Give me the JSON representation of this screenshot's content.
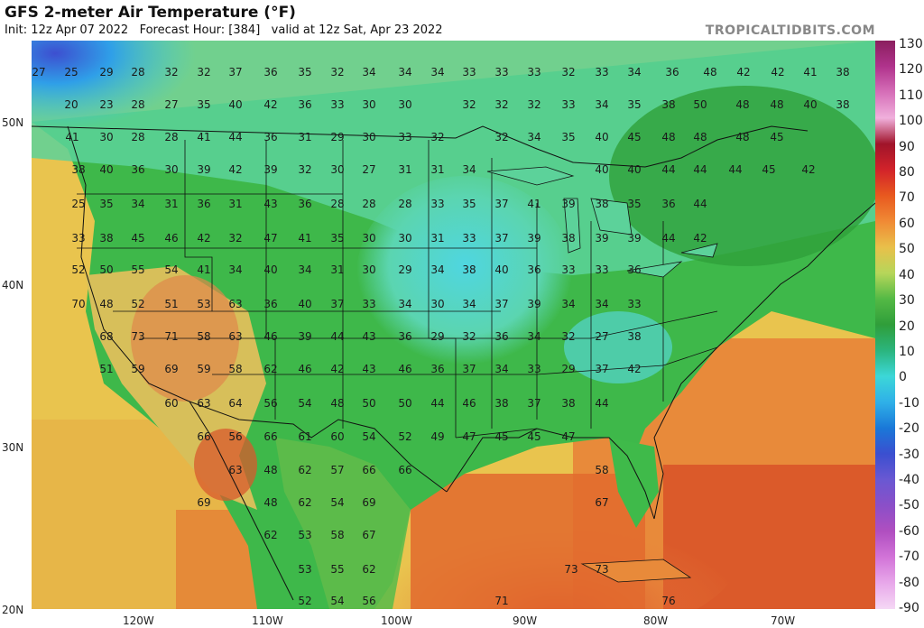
{
  "header": {
    "title": "GFS 2-meter Air Temperature (°F)",
    "subtitle": "Init: 12z Apr 07 2022   Forecast Hour: [384]   valid at 12z Sat, Apr 23 2022",
    "credit": "TROPICALTIDBITS.COM"
  },
  "colorbar": {
    "labels": [
      "130",
      "120",
      "110",
      "100",
      "90",
      "80",
      "70",
      "60",
      "50",
      "40",
      "30",
      "20",
      "10",
      "0",
      "-10",
      "-20",
      "-30",
      "-40",
      "-50",
      "-60",
      "-70",
      "-80",
      "-90"
    ],
    "colors": [
      "#8a1f5e",
      "#b0338c",
      "#d66fb8",
      "#f0b0dc",
      "#a0142a",
      "#d2232a",
      "#e8591f",
      "#f08a35",
      "#e9c04a",
      "#b6d65a",
      "#54b945",
      "#2f9e3a",
      "#2bb57e",
      "#3cd7d8",
      "#2fb0e8",
      "#1a78d8",
      "#3b4fd0",
      "#6a58d2",
      "#8b4fc8",
      "#b04fc0",
      "#d274d8",
      "#e8a8ea",
      "#f5d8f5"
    ]
  },
  "axes": {
    "lat_labels": [
      "50N",
      "40N",
      "30N",
      "20N"
    ],
    "lon_labels": [
      "120W",
      "110W",
      "100W",
      "90W",
      "80W",
      "70W"
    ]
  },
  "temps": [
    "27",
    "25",
    "29",
    "28",
    "32",
    "32",
    "37",
    "36",
    "35",
    "32",
    "34",
    "34",
    "34",
    "33",
    "33",
    "33",
    "32",
    "33",
    "34",
    "36",
    "48",
    "42",
    "42",
    "41",
    "38",
    "20",
    "23",
    "28",
    "27",
    "35",
    "40",
    "42",
    "36",
    "33",
    "30",
    "30",
    "32",
    "32",
    "32",
    "33",
    "34",
    "35",
    "38",
    "50",
    "48",
    "48",
    "40",
    "38",
    "41",
    "30",
    "28",
    "28",
    "41",
    "44",
    "36",
    "31",
    "29",
    "30",
    "33",
    "32",
    "32",
    "34",
    "35",
    "40",
    "45",
    "48",
    "48",
    "48",
    "45",
    "38",
    "40",
    "36",
    "30",
    "39",
    "42",
    "39",
    "32",
    "30",
    "27",
    "31",
    "31",
    "34",
    "40",
    "40",
    "44",
    "44",
    "44",
    "45",
    "42",
    "25",
    "35",
    "34",
    "31",
    "36",
    "31",
    "43",
    "36",
    "28",
    "28",
    "28",
    "33",
    "35",
    "37",
    "41",
    "39",
    "38",
    "35",
    "36",
    "44",
    "33",
    "38",
    "45",
    "46",
    "42",
    "32",
    "47",
    "41",
    "35",
    "30",
    "30",
    "31",
    "33",
    "37",
    "39",
    "38",
    "39",
    "39",
    "44",
    "42",
    "52",
    "50",
    "55",
    "54",
    "41",
    "34",
    "40",
    "34",
    "31",
    "30",
    "29",
    "34",
    "38",
    "40",
    "36",
    "33",
    "33",
    "36",
    "70",
    "48",
    "52",
    "51",
    "53",
    "63",
    "36",
    "40",
    "37",
    "33",
    "34",
    "30",
    "34",
    "37",
    "39",
    "34",
    "34",
    "33",
    "68",
    "73",
    "71",
    "58",
    "63",
    "46",
    "39",
    "44",
    "43",
    "36",
    "29",
    "32",
    "36",
    "34",
    "32",
    "27",
    "38",
    "51",
    "59",
    "69",
    "59",
    "58",
    "62",
    "46",
    "42",
    "43",
    "46",
    "36",
    "37",
    "34",
    "33",
    "29",
    "37",
    "42",
    "60",
    "63",
    "64",
    "56",
    "54",
    "48",
    "50",
    "50",
    "44",
    "46",
    "38",
    "37",
    "38",
    "44",
    "66",
    "56",
    "66",
    "61",
    "60",
    "54",
    "52",
    "49",
    "47",
    "45",
    "45",
    "47",
    "63",
    "48",
    "62",
    "57",
    "66",
    "66",
    "58",
    "69",
    "48",
    "62",
    "54",
    "69",
    "67",
    "62",
    "53",
    "58",
    "67",
    "53",
    "55",
    "62",
    "73",
    "73",
    "52",
    "54",
    "56",
    "71",
    "76"
  ]
}
